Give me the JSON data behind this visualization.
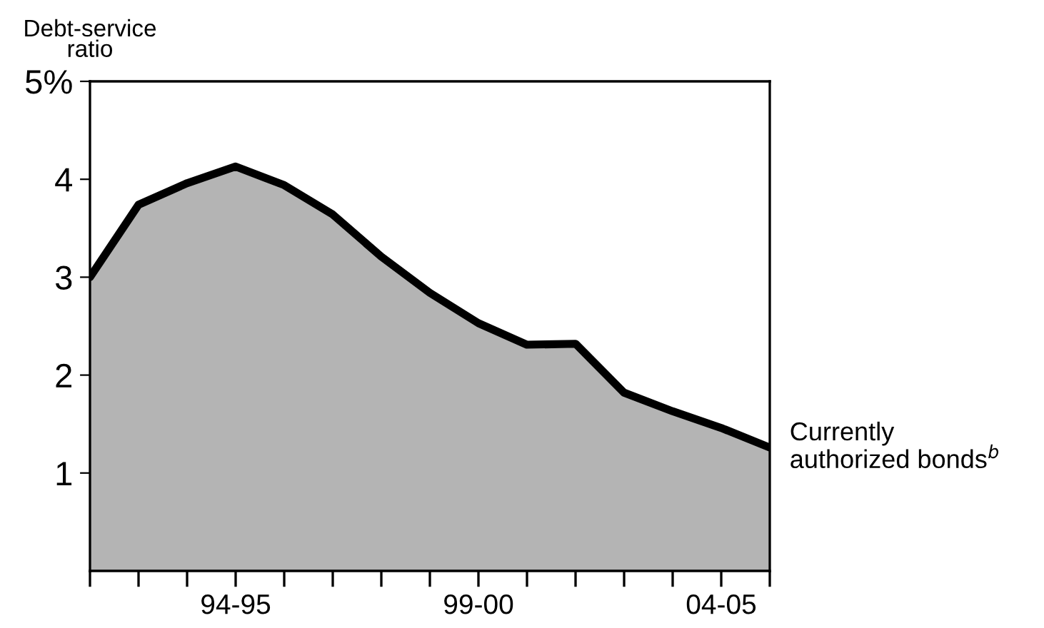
{
  "chart_data": {
    "type": "area",
    "ylabel": "Debt-service\nratio",
    "categories": [
      null,
      null,
      null,
      "94-95",
      null,
      null,
      null,
      null,
      "99-00",
      null,
      null,
      null,
      null,
      "04-05",
      null
    ],
    "series": [
      {
        "color": "#b4b4b4",
        "values": [
          3.0,
          3.74,
          3.96,
          4.13,
          3.94,
          3.64,
          3.21,
          2.84,
          2.53,
          2.31,
          2.32,
          1.82,
          1.63,
          1.46,
          1.26
        ]
      }
    ],
    "ylim": [
      0,
      5
    ],
    "yticks": [
      1,
      2,
      3,
      4,
      {
        "value": 5,
        "label": "5%"
      }
    ],
    "annotations": [
      "Currently\nauthorized bonds$^{b}$"
    ],
    "grid": false,
    "legend": false
  }
}
